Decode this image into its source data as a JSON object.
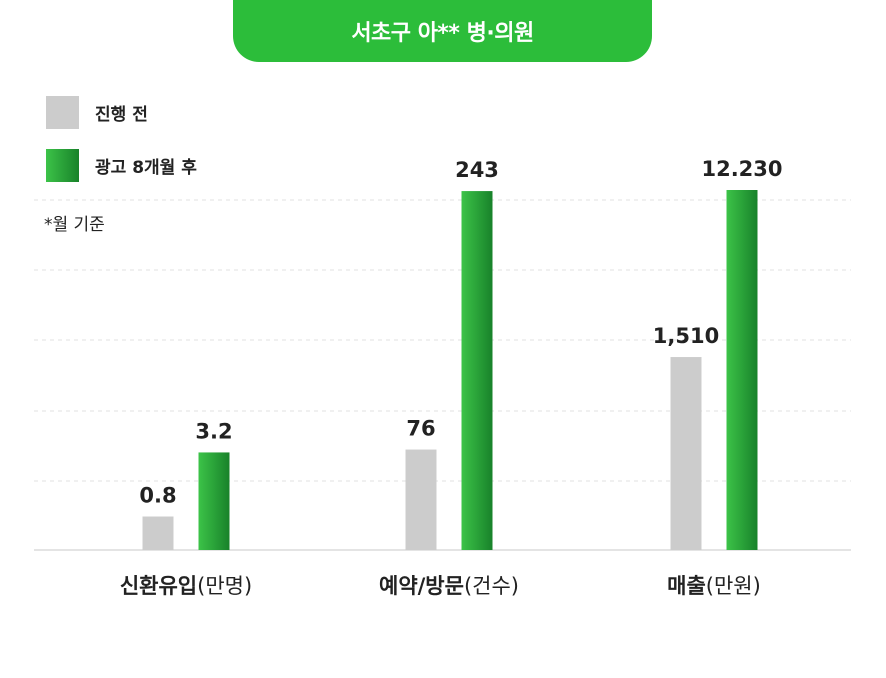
{
  "header": {
    "title": "서초구 아** 병·의원"
  },
  "legend": [
    {
      "label": "진행 전",
      "color": "#cccccc"
    },
    {
      "label": "광고 8개월 후",
      "color": "#2cb23a"
    }
  ],
  "note": "*월 기준",
  "chart_data": {
    "type": "bar",
    "categories": [
      {
        "main": "신환유입",
        "unit": "(만명)"
      },
      {
        "main": "예약/방문",
        "unit": "(건수)"
      },
      {
        "main": "매출",
        "unit": "(만원)"
      }
    ],
    "series": [
      {
        "name": "진행 전",
        "color": "#cccccc",
        "labels": [
          "0.8",
          "76",
          "1,510"
        ]
      },
      {
        "name": "광고 8개월 후",
        "color": "#2cb23a",
        "labels": [
          "3.2",
          "243",
          "12.230"
        ]
      }
    ],
    "relative_heights": [
      [
        0.093,
        0.271
      ],
      [
        0.279,
        0.997
      ],
      [
        0.536,
        1.0
      ]
    ],
    "grid": "dashed-horizontal",
    "legend_position": "top-left"
  }
}
